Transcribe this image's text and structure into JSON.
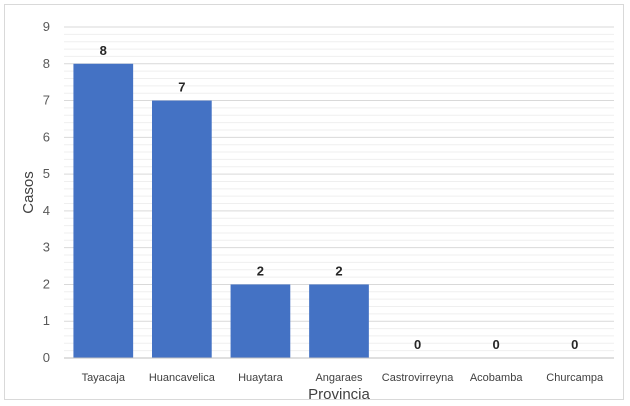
{
  "chart_data": {
    "type": "bar",
    "categories": [
      "Tayacaja",
      "Huancavelica",
      "Huaytara",
      "Angaraes",
      "Castrovirreyna",
      "Acobamba",
      "Churcampa"
    ],
    "values": [
      8,
      7,
      2,
      2,
      0,
      0,
      0
    ],
    "data_labels": [
      "8",
      "7",
      "2",
      "2",
      "0",
      "0",
      "0"
    ],
    "title": "",
    "xlabel": "Provincia",
    "ylabel": "Casos",
    "ylim": [
      0,
      9
    ],
    "yticks": [
      0,
      1,
      2,
      3,
      4,
      5,
      6,
      7,
      8,
      9
    ],
    "grid": "on (major and minor horizontal)",
    "legend": "none",
    "bar_color": "#4472c4",
    "grid_color": "#d9d9d9"
  }
}
